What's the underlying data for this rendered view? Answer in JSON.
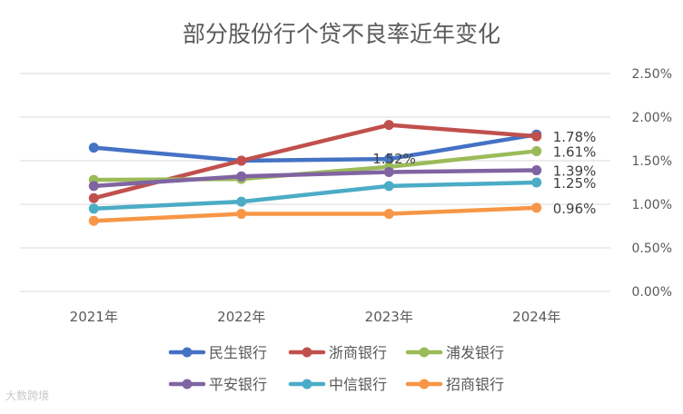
{
  "watermark": "大数跨境",
  "colors": {
    "gridline": "#d9d9d9",
    "text": "#595959",
    "title": "#595959"
  },
  "chart_data": {
    "type": "line",
    "title": "部分股份行个贷不良率近年变化",
    "categories": [
      "2021年",
      "2022年",
      "2023年",
      "2024年"
    ],
    "y_axis": {
      "side": "right",
      "ylim": [
        0,
        2.5
      ],
      "ticks": [
        "0.00%",
        "0.50%",
        "1.00%",
        "1.50%",
        "2.00%",
        "2.50%"
      ],
      "tick_values": [
        0,
        0.5,
        1.0,
        1.5,
        2.0,
        2.5
      ]
    },
    "grid": true,
    "legend_position": "bottom",
    "series": [
      {
        "name": "民生银行",
        "color": "#4472c4",
        "values": [
          1.65,
          1.5,
          1.52,
          1.8
        ],
        "labels": [
          "",
          "",
          "1.52%",
          ""
        ]
      },
      {
        "name": "浙商银行",
        "color": "#c0504d",
        "values": [
          1.07,
          1.5,
          1.91,
          1.78
        ],
        "labels": [
          "",
          "",
          "",
          "1.78%"
        ]
      },
      {
        "name": "浦发银行",
        "color": "#9bbb59",
        "values": [
          1.28,
          1.29,
          1.43,
          1.61
        ],
        "labels": [
          "",
          "",
          "",
          "1.61%"
        ]
      },
      {
        "name": "平安银行",
        "color": "#8064a2",
        "values": [
          1.21,
          1.32,
          1.37,
          1.39
        ],
        "labels": [
          "",
          "",
          "",
          "1.39%"
        ]
      },
      {
        "name": "中信银行",
        "color": "#4bacc6",
        "values": [
          0.95,
          1.03,
          1.21,
          1.25
        ],
        "labels": [
          "",
          "",
          "",
          "1.25%"
        ]
      },
      {
        "name": "招商银行",
        "color": "#f79646",
        "values": [
          0.81,
          0.89,
          0.89,
          0.96
        ],
        "labels": [
          "",
          "",
          "",
          "0.96%"
        ]
      }
    ]
  }
}
